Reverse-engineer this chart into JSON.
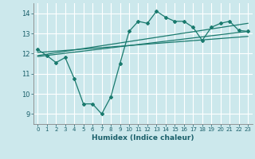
{
  "bg_color": "#cce8ec",
  "grid_color": "#ffffff",
  "line_color": "#1a7a6e",
  "xlabel": "Humidex (Indice chaleur)",
  "ylim": [
    8.5,
    14.5
  ],
  "xlim": [
    -0.5,
    23.5
  ],
  "yticks": [
    9,
    10,
    11,
    12,
    13,
    14
  ],
  "xticks": [
    0,
    1,
    2,
    3,
    4,
    5,
    6,
    7,
    8,
    9,
    10,
    11,
    12,
    13,
    14,
    15,
    16,
    17,
    18,
    19,
    20,
    21,
    22,
    23
  ],
  "series1_x": [
    0,
    1,
    2,
    3,
    4,
    5,
    6,
    7,
    8,
    9,
    10,
    11,
    12,
    13,
    14,
    15,
    16,
    17,
    18,
    19,
    20,
    21,
    22,
    23
  ],
  "series1_y": [
    12.2,
    11.9,
    11.55,
    11.8,
    10.75,
    9.5,
    9.5,
    9.0,
    9.85,
    11.5,
    13.1,
    13.6,
    13.5,
    14.1,
    13.8,
    13.6,
    13.6,
    13.3,
    12.65,
    13.3,
    13.5,
    13.6,
    13.15,
    13.1
  ],
  "series2_x": [
    0,
    23
  ],
  "series2_y": [
    11.85,
    13.1
  ],
  "series3_x": [
    0,
    23
  ],
  "series3_y": [
    12.05,
    12.85
  ],
  "series4_x": [
    0,
    23
  ],
  "series4_y": [
    11.9,
    13.5
  ]
}
